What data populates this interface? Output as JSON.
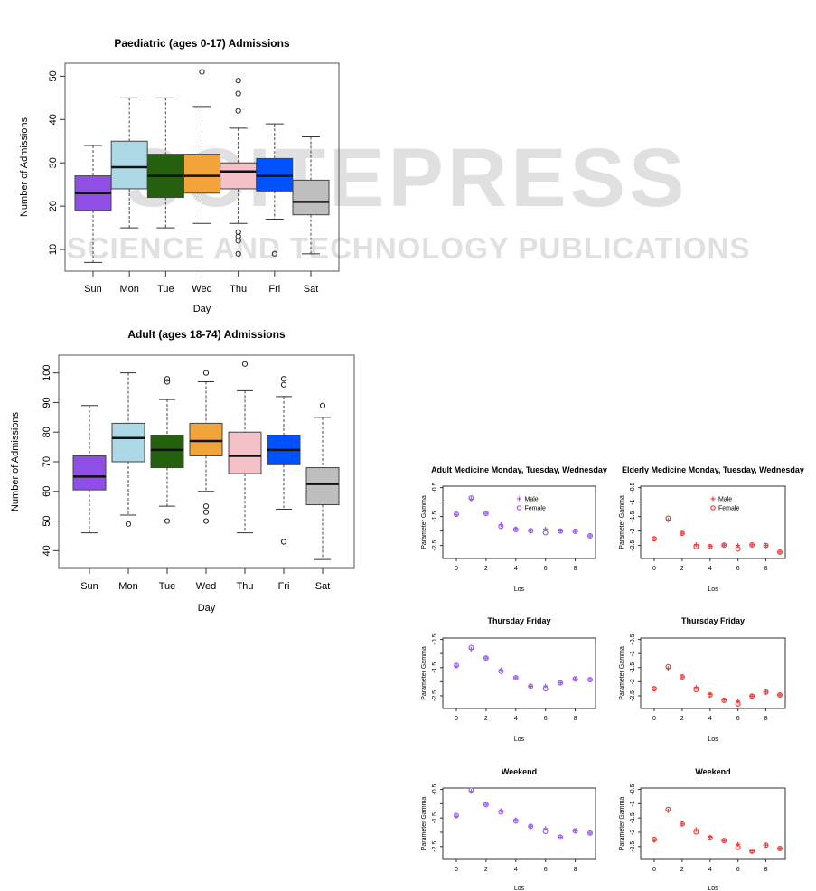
{
  "watermark": {
    "main": "SCITEPRESS",
    "sub": "SCIENCE AND TECHNOLOGY PUBLICATIONS"
  },
  "chart_data": [
    {
      "type": "boxplot",
      "title": "Paediatric (ages 0-17) Admissions",
      "xlabel": "Day",
      "ylabel": "Number of Admissions",
      "ylim": [
        5,
        53
      ],
      "yticks": [
        10,
        20,
        30,
        40,
        50
      ],
      "categories": [
        "Sun",
        "Mon",
        "Tue",
        "Wed",
        "Thu",
        "Fri",
        "Sat"
      ],
      "colors": [
        "#8f4fe6",
        "#add8e6",
        "#25600f",
        "#f2a43a",
        "#f5c1c9",
        "#0052ff",
        "#bebebe"
      ],
      "boxes": [
        {
          "min": 7,
          "q1": 19,
          "median": 23,
          "q3": 27,
          "max": 34,
          "outliers": []
        },
        {
          "min": 15,
          "q1": 24,
          "median": 29,
          "q3": 35,
          "max": 45,
          "outliers": []
        },
        {
          "min": 15,
          "q1": 22,
          "median": 27,
          "q3": 32,
          "max": 45,
          "outliers": []
        },
        {
          "min": 16,
          "q1": 23,
          "median": 27,
          "q3": 32,
          "max": 43,
          "outliers": [
            51
          ]
        },
        {
          "min": 16,
          "q1": 24,
          "median": 28,
          "q3": 30,
          "max": 38,
          "outliers": [
            42,
            46,
            49,
            9,
            12,
            13,
            14
          ]
        },
        {
          "min": 17,
          "q1": 23.5,
          "median": 27,
          "q3": 31,
          "max": 39,
          "outliers": [
            9
          ]
        },
        {
          "min": 9,
          "q1": 18,
          "median": 21,
          "q3": 26,
          "max": 36,
          "outliers": []
        }
      ]
    },
    {
      "type": "boxplot",
      "title": "Adult (ages 18-74) Admissions",
      "xlabel": "Day",
      "ylabel": "Number of Admissions",
      "ylim": [
        34,
        106
      ],
      "yticks": [
        40,
        50,
        60,
        70,
        80,
        90,
        100
      ],
      "categories": [
        "Sun",
        "Mon",
        "Tue",
        "Wed",
        "Thu",
        "Fri",
        "Sat"
      ],
      "colors": [
        "#8f4fe6",
        "#add8e6",
        "#25600f",
        "#f2a43a",
        "#f5c1c9",
        "#0052ff",
        "#bebebe"
      ],
      "boxes": [
        {
          "min": 46,
          "q1": 60.5,
          "median": 65,
          "q3": 72,
          "max": 89,
          "outliers": []
        },
        {
          "min": 52,
          "q1": 70,
          "median": 78,
          "q3": 83,
          "max": 100,
          "outliers": [
            49
          ]
        },
        {
          "min": 55,
          "q1": 68,
          "median": 74,
          "q3": 79,
          "max": 91,
          "outliers": [
            50,
            97,
            98
          ]
        },
        {
          "min": 60,
          "q1": 72,
          "median": 77,
          "q3": 83,
          "max": 97,
          "outliers": [
            50,
            53,
            55,
            100
          ]
        },
        {
          "min": 46,
          "q1": 66,
          "median": 72,
          "q3": 80,
          "max": 94,
          "outliers": [
            103
          ]
        },
        {
          "min": 54,
          "q1": 69,
          "median": 74,
          "q3": 79,
          "max": 92,
          "outliers": [
            43,
            96,
            98
          ]
        },
        {
          "min": 37,
          "q1": 55.5,
          "median": 62.5,
          "q3": 68,
          "max": 85,
          "outliers": [
            89
          ]
        }
      ]
    },
    {
      "type": "scatter",
      "title": "Adult Medicine Monday, Tuesday, Wednesday",
      "xlabel": "Los",
      "ylabel": "Parameter Gamma",
      "xlim": [
        0,
        9
      ],
      "ylim": [
        -2.95,
        -0.45
      ],
      "xticks": [
        0,
        2,
        4,
        6,
        8
      ],
      "yticks": [
        -0.5,
        -1.0,
        -1.5,
        -2.0,
        -2.5
      ],
      "ytick_labels": [
        "-0.5",
        "",
        "-1.5",
        "",
        "-2.5"
      ],
      "color": "#9b5cf0",
      "legend": [
        "Male",
        "Female"
      ],
      "legend_position": "top-right",
      "x": [
        0,
        1,
        2,
        3,
        4,
        5,
        6,
        7,
        8,
        9
      ],
      "series": [
        {
          "name": "Male",
          "marker": "plus",
          "values": [
            -1.44,
            -0.9,
            -1.39,
            -1.78,
            -1.92,
            -1.98,
            -1.93,
            -2.0,
            -2.01,
            -2.17
          ]
        },
        {
          "name": "Female",
          "marker": "circle",
          "values": [
            -1.42,
            -0.86,
            -1.39,
            -1.84,
            -1.95,
            -1.99,
            -2.06,
            -2.0,
            -2.01,
            -2.17
          ]
        }
      ]
    },
    {
      "type": "scatter",
      "title": "Elderly Medicine Monday, Tuesday, Wednesday",
      "xlabel": "Los",
      "ylabel": "Parameter Gamma",
      "xlim": [
        0,
        9
      ],
      "ylim": [
        -2.95,
        -0.45
      ],
      "xticks": [
        0,
        2,
        4,
        6,
        8
      ],
      "yticks": [
        -0.5,
        -1.0,
        -1.5,
        -2.0,
        -2.5
      ],
      "ytick_labels": [
        "-0.5",
        "-1",
        "-1.5",
        "-2",
        "-2.5"
      ],
      "color": "#ee3b3b",
      "legend": [
        "Male",
        "Female"
      ],
      "legend_position": "top-right",
      "x": [
        0,
        1,
        2,
        3,
        4,
        5,
        6,
        7,
        8,
        9
      ],
      "series": [
        {
          "name": "Male",
          "marker": "plus",
          "values": [
            -2.28,
            -1.63,
            -2.08,
            -2.47,
            -2.53,
            -2.49,
            -2.5,
            -2.48,
            -2.5,
            -2.73
          ]
        },
        {
          "name": "Female",
          "marker": "circle",
          "values": [
            -2.27,
            -1.56,
            -2.08,
            -2.54,
            -2.54,
            -2.49,
            -2.62,
            -2.48,
            -2.5,
            -2.73
          ]
        }
      ]
    },
    {
      "type": "scatter",
      "title": "Thursday Friday",
      "xlabel": "Los",
      "ylabel": "Parameter Gamma",
      "xlim": [
        0,
        9
      ],
      "ylim": [
        -2.95,
        -0.45
      ],
      "xticks": [
        0,
        2,
        4,
        6,
        8
      ],
      "yticks": [
        -0.5,
        -1.0,
        -1.5,
        -2.0,
        -2.5
      ],
      "ytick_labels": [
        "-0.5",
        "",
        "-1.5",
        "",
        "-2.5"
      ],
      "color": "#9b5cf0",
      "x": [
        0,
        1,
        2,
        3,
        4,
        5,
        6,
        7,
        8,
        9
      ],
      "series": [
        {
          "name": "Male",
          "marker": "plus",
          "values": [
            -1.45,
            -0.85,
            -1.16,
            -1.58,
            -1.86,
            -2.16,
            -2.15,
            -2.04,
            -1.9,
            -1.93
          ]
        },
        {
          "name": "Female",
          "marker": "circle",
          "values": [
            -1.42,
            -0.79,
            -1.16,
            -1.63,
            -1.86,
            -2.16,
            -2.25,
            -2.04,
            -1.9,
            -1.93
          ]
        }
      ]
    },
    {
      "type": "scatter",
      "title": "Thursday Friday",
      "xlabel": "Los",
      "ylabel": "Parameter Gamma",
      "xlim": [
        0,
        9
      ],
      "ylim": [
        -2.95,
        -0.45
      ],
      "xticks": [
        0,
        2,
        4,
        6,
        8
      ],
      "yticks": [
        -0.5,
        -1.0,
        -1.5,
        -2.0,
        -2.5
      ],
      "ytick_labels": [
        "-0.5",
        "-1",
        "-1.5",
        "-2",
        "-2.5"
      ],
      "color": "#ee3b3b",
      "x": [
        0,
        1,
        2,
        3,
        4,
        5,
        6,
        7,
        8,
        9
      ],
      "series": [
        {
          "name": "Male",
          "marker": "plus",
          "values": [
            -2.27,
            -1.53,
            -1.83,
            -2.2,
            -2.45,
            -2.64,
            -2.69,
            -2.51,
            -2.37,
            -2.47
          ]
        },
        {
          "name": "Female",
          "marker": "circle",
          "values": [
            -2.25,
            -1.47,
            -1.83,
            -2.28,
            -2.47,
            -2.66,
            -2.79,
            -2.51,
            -2.37,
            -2.47
          ]
        }
      ]
    },
    {
      "type": "scatter",
      "title": "Weekend",
      "xlabel": "Los",
      "ylabel": "Parameter Gamma",
      "xlim": [
        0,
        9
      ],
      "ylim": [
        -2.95,
        -0.45
      ],
      "xticks": [
        0,
        2,
        4,
        6,
        8
      ],
      "yticks": [
        -0.5,
        -1.0,
        -1.5,
        -2.0,
        -2.5
      ],
      "ytick_labels": [
        "-0.5",
        "",
        "-1.5",
        "",
        "-2.5"
      ],
      "color": "#9b5cf0",
      "x": [
        0,
        1,
        2,
        3,
        4,
        5,
        6,
        7,
        8,
        9
      ],
      "series": [
        {
          "name": "Male",
          "marker": "plus",
          "values": [
            -1.44,
            -0.57,
            -1.03,
            -1.24,
            -1.56,
            -1.79,
            -1.87,
            -2.17,
            -1.95,
            -2.03
          ]
        },
        {
          "name": "Female",
          "marker": "circle",
          "values": [
            -1.41,
            -0.52,
            -1.03,
            -1.29,
            -1.6,
            -1.79,
            -1.97,
            -2.17,
            -1.95,
            -2.03
          ]
        }
      ]
    },
    {
      "type": "scatter",
      "title": "Weekend",
      "xlabel": "Los",
      "ylabel": "Parameter Gamma",
      "xlim": [
        0,
        9
      ],
      "ylim": [
        -2.95,
        -0.45
      ],
      "xticks": [
        0,
        2,
        4,
        6,
        8
      ],
      "yticks": [
        -0.5,
        -1.0,
        -1.5,
        -2.0,
        -2.5
      ],
      "ytick_labels": [
        "-0.5",
        "-1",
        "-1.5",
        "-2",
        "-2.5"
      ],
      "color": "#ee3b3b",
      "x": [
        0,
        1,
        2,
        3,
        4,
        5,
        6,
        7,
        8,
        9
      ],
      "series": [
        {
          "name": "Male",
          "marker": "plus",
          "values": [
            -2.29,
            -1.25,
            -1.71,
            -1.91,
            -2.17,
            -2.29,
            -2.42,
            -2.66,
            -2.45,
            -2.57
          ]
        },
        {
          "name": "Female",
          "marker": "circle",
          "values": [
            -2.25,
            -1.2,
            -1.71,
            -1.99,
            -2.2,
            -2.29,
            -2.53,
            -2.66,
            -2.45,
            -2.57
          ]
        }
      ]
    }
  ]
}
